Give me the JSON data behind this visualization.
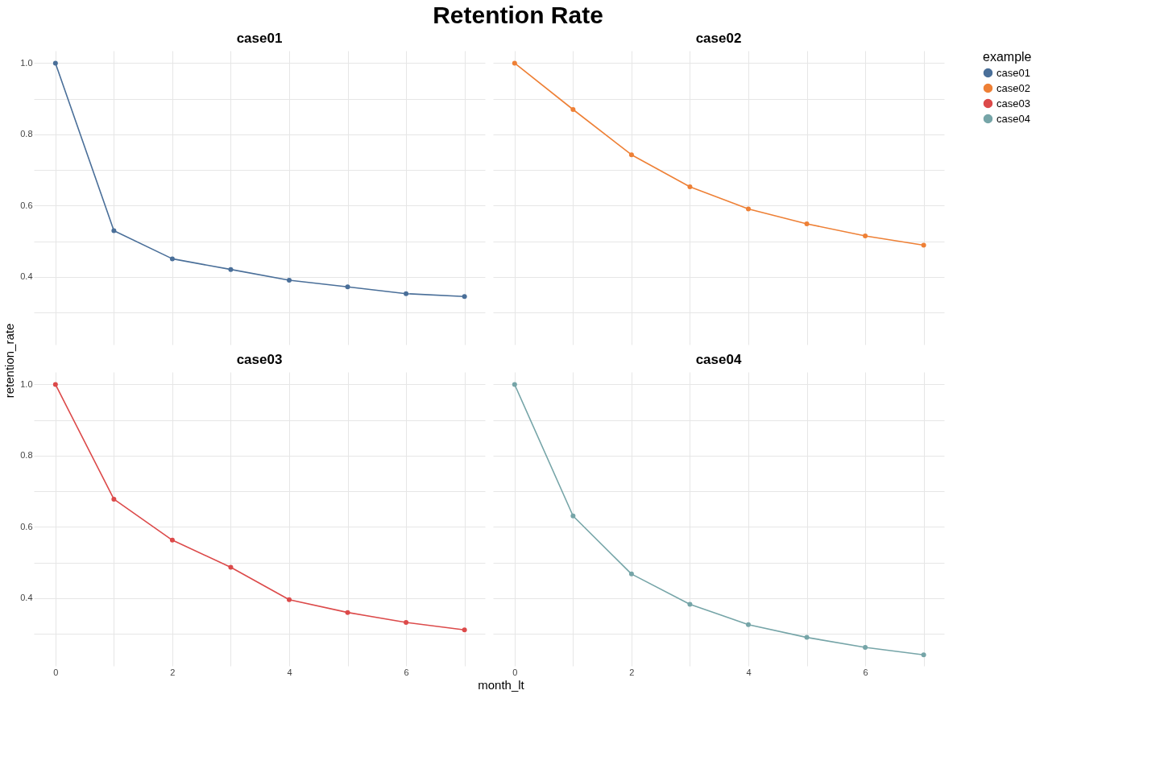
{
  "chart_data": [
    {
      "type": "line",
      "title": "case01",
      "annotations": [
        "Retention Rate"
      ],
      "legend_title": "example",
      "legend": "right",
      "ylabel": "retention_rate",
      "x": [
        0,
        1,
        2,
        3,
        4,
        5,
        6,
        7
      ],
      "series": [
        {
          "name": "case01",
          "color": "#4a6f99",
          "values": [
            1.0,
            0.53,
            0.451,
            0.421,
            0.391,
            0.372,
            0.353,
            0.345
          ]
        }
      ],
      "xlim": [
        -0.37,
        7.35
      ],
      "ylim": [
        0.21,
        1.035
      ],
      "xticks": [
        {
          "value": 0,
          "label": null
        },
        {
          "value": 1,
          "label": null
        },
        {
          "value": 2,
          "label": null
        },
        {
          "value": 3,
          "label": null
        },
        {
          "value": 4,
          "label": null
        },
        {
          "value": 5,
          "label": null
        },
        {
          "value": 6,
          "label": null
        },
        {
          "value": 7,
          "label": null
        }
      ],
      "yticks": [
        {
          "value": 0.3,
          "label": null
        },
        0.4,
        {
          "value": 0.5,
          "label": null
        },
        0.6,
        {
          "value": 0.7,
          "label": null
        },
        0.8,
        {
          "value": 0.9,
          "label": null
        },
        {
          "value": 1,
          "label": "1.0"
        }
      ],
      "grid": true,
      "marker": "circle",
      "tick_labels": "y"
    },
    {
      "type": "line",
      "title": "case02",
      "x": [
        0,
        1,
        2,
        3,
        4,
        5,
        6,
        7
      ],
      "series": [
        {
          "name": "case02",
          "color": "#ee8036",
          "values": [
            1.0,
            0.87,
            0.743,
            0.653,
            0.591,
            0.549,
            0.515,
            0.489
          ]
        }
      ],
      "xlim": [
        -0.37,
        7.35
      ],
      "ylim": [
        0.21,
        1.035
      ],
      "xticks": [
        {
          "value": 0,
          "label": null
        },
        {
          "value": 1,
          "label": null
        },
        {
          "value": 2,
          "label": null
        },
        {
          "value": 3,
          "label": null
        },
        {
          "value": 4,
          "label": null
        },
        {
          "value": 5,
          "label": null
        },
        {
          "value": 6,
          "label": null
        },
        {
          "value": 7,
          "label": null
        }
      ],
      "yticks": [
        {
          "value": 0.3,
          "label": null
        },
        {
          "value": 0.4,
          "label": null
        },
        {
          "value": 0.5,
          "label": null
        },
        {
          "value": 0.6,
          "label": null
        },
        {
          "value": 0.7,
          "label": null
        },
        {
          "value": 0.8,
          "label": null
        },
        {
          "value": 0.9,
          "label": null
        },
        {
          "value": 1,
          "label": null
        }
      ],
      "grid": true,
      "marker": "circle",
      "tick_labels": false
    },
    {
      "type": "line",
      "title": "case03",
      "xlabel": "month_lt",
      "x": [
        0,
        1,
        2,
        3,
        4,
        5,
        6,
        7
      ],
      "series": [
        {
          "name": "case03",
          "color": "#dc4a4a",
          "values": [
            1.0,
            0.678,
            0.563,
            0.487,
            0.396,
            0.36,
            0.332,
            0.311
          ]
        }
      ],
      "xlim": [
        -0.37,
        7.35
      ],
      "ylim": [
        0.21,
        1.035
      ],
      "xticks": [
        0,
        {
          "value": 1,
          "label": null
        },
        2,
        {
          "value": 3,
          "label": null
        },
        4,
        {
          "value": 5,
          "label": null
        },
        6,
        {
          "value": 7,
          "label": null
        }
      ],
      "yticks": [
        {
          "value": 0.3,
          "label": null
        },
        0.4,
        {
          "value": 0.5,
          "label": null
        },
        0.6,
        {
          "value": 0.7,
          "label": null
        },
        0.8,
        {
          "value": 0.9,
          "label": null
        },
        {
          "value": 1,
          "label": "1.0"
        }
      ],
      "grid": true,
      "marker": "circle"
    },
    {
      "type": "line",
      "title": "case04",
      "x": [
        0,
        1,
        2,
        3,
        4,
        5,
        6,
        7
      ],
      "series": [
        {
          "name": "case04",
          "color": "#76a5a8",
          "values": [
            1.0,
            0.631,
            0.468,
            0.383,
            0.326,
            0.29,
            0.262,
            0.241
          ]
        }
      ],
      "xlim": [
        -0.37,
        7.35
      ],
      "ylim": [
        0.21,
        1.035
      ],
      "xticks": [
        0,
        {
          "value": 1,
          "label": null
        },
        2,
        {
          "value": 3,
          "label": null
        },
        4,
        {
          "value": 5,
          "label": null
        },
        6,
        {
          "value": 7,
          "label": null
        }
      ],
      "yticks": [
        {
          "value": 0.3,
          "label": null
        },
        {
          "value": 0.4,
          "label": null
        },
        {
          "value": 0.5,
          "label": null
        },
        {
          "value": 0.6,
          "label": null
        },
        {
          "value": 0.7,
          "label": null
        },
        {
          "value": 0.8,
          "label": null
        },
        {
          "value": 0.9,
          "label": null
        },
        {
          "value": 1,
          "label": null
        }
      ],
      "grid": true,
      "marker": "circle",
      "tick_labels": "x"
    }
  ]
}
